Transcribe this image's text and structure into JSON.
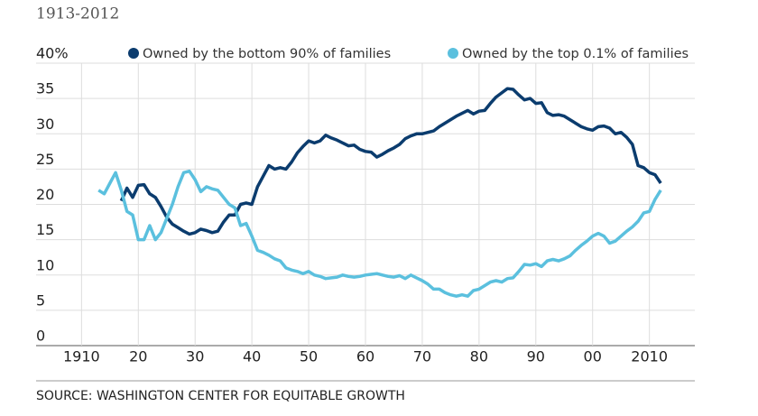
{
  "chart_data": {
    "type": "line",
    "subtitle": "1913-2012",
    "source": "SOURCE: WASHINGTON CENTER FOR EQUITABLE GROWTH",
    "x": [
      1913,
      1914,
      1915,
      1916,
      1917,
      1918,
      1919,
      1920,
      1921,
      1922,
      1923,
      1924,
      1925,
      1926,
      1927,
      1928,
      1929,
      1930,
      1931,
      1932,
      1933,
      1934,
      1935,
      1936,
      1937,
      1938,
      1939,
      1940,
      1941,
      1942,
      1943,
      1944,
      1945,
      1946,
      1947,
      1948,
      1949,
      1950,
      1951,
      1952,
      1953,
      1954,
      1955,
      1956,
      1957,
      1958,
      1959,
      1960,
      1961,
      1962,
      1963,
      1964,
      1965,
      1966,
      1967,
      1968,
      1969,
      1970,
      1971,
      1972,
      1973,
      1974,
      1975,
      1976,
      1977,
      1978,
      1979,
      1980,
      1981,
      1982,
      1983,
      1984,
      1985,
      1986,
      1987,
      1988,
      1989,
      1990,
      1991,
      1992,
      1993,
      1994,
      1995,
      1996,
      1997,
      1998,
      1999,
      2000,
      2001,
      2002,
      2003,
      2004,
      2005,
      2006,
      2007,
      2008,
      2009,
      2010,
      2011,
      2012
    ],
    "series": [
      {
        "name": "Owned by the bottom 90% of families",
        "color": "#0b3c6e",
        "values": [
          null,
          null,
          null,
          null,
          20.5,
          22.3,
          21,
          22.7,
          22.8,
          21.5,
          21,
          19.7,
          18.2,
          17.2,
          16.7,
          16.2,
          15.8,
          16,
          16.5,
          16.3,
          16,
          16.2,
          17.5,
          18.5,
          18.5,
          20,
          20.2,
          20,
          22.5,
          24,
          25.5,
          25,
          25.2,
          25,
          26,
          27.3,
          28.2,
          29,
          28.7,
          29,
          29.8,
          29.4,
          29.1,
          28.7,
          28.3,
          28.4,
          27.8,
          27.5,
          27.4,
          26.7,
          27.1,
          27.6,
          28,
          28.5,
          29.3,
          29.7,
          30,
          30,
          30.2,
          30.4,
          31,
          31.5,
          32,
          32.5,
          32.9,
          33.3,
          32.8,
          33.2,
          33.3,
          34.3,
          35.2,
          35.8,
          36.4,
          36.3,
          35.5,
          34.8,
          35,
          34.3,
          34.4,
          33,
          32.6,
          32.7,
          32.5,
          32,
          31.5,
          31,
          30.7,
          30.5,
          31,
          31.1,
          30.8,
          30,
          30.2,
          29.5,
          28.5,
          25.5,
          25.2,
          24.5,
          24.2,
          23
        ]
      },
      {
        "name": "Owned by the top 0.1% of families",
        "color": "#5bc0de",
        "values": [
          22,
          21.5,
          23,
          24.5,
          22,
          19,
          18.5,
          15,
          15,
          17,
          15,
          16,
          18,
          20,
          22.5,
          24.5,
          24.7,
          23.5,
          21.8,
          22.5,
          22.2,
          22,
          21,
          20,
          19.5,
          17,
          17.3,
          15.5,
          13.5,
          13.2,
          12.8,
          12.3,
          12,
          11,
          10.7,
          10.5,
          10.2,
          10.5,
          10,
          9.8,
          9.5,
          9.6,
          9.7,
          10,
          9.8,
          9.7,
          9.8,
          10,
          10.1,
          10.2,
          10,
          9.8,
          9.7,
          9.9,
          9.5,
          10,
          9.6,
          9.2,
          8.7,
          8,
          8,
          7.5,
          7.2,
          7,
          7.2,
          7,
          7.8,
          8,
          8.5,
          9,
          9.2,
          9,
          9.5,
          9.6,
          10.5,
          11.5,
          11.4,
          11.6,
          11.2,
          12,
          12.2,
          12,
          12.3,
          12.7,
          13.5,
          14.2,
          14.8,
          15.5,
          15.9,
          15.5,
          14.5,
          14.8,
          15.5,
          16.2,
          16.8,
          17.6,
          18.8,
          19,
          20.7,
          22
        ]
      }
    ],
    "xlim": [
      1902,
      2018
    ],
    "xticks": [
      1910,
      {
        "value": 1920,
        "label": "20"
      },
      {
        "value": 1930,
        "label": "30"
      },
      {
        "value": 1940,
        "label": "40"
      },
      {
        "value": 1950,
        "label": "50"
      },
      {
        "value": 1960,
        "label": "60"
      },
      {
        "value": 1970,
        "label": "70"
      },
      {
        "value": 1980,
        "label": "80"
      },
      {
        "value": 1990,
        "label": "90"
      },
      {
        "value": 2000,
        "label": "00"
      },
      2010
    ],
    "ylim": [
      0,
      40
    ],
    "yticks": [
      0,
      5,
      10,
      15,
      20,
      25,
      30,
      35,
      {
        "value": 40,
        "label": "40%"
      }
    ],
    "grid": true
  }
}
